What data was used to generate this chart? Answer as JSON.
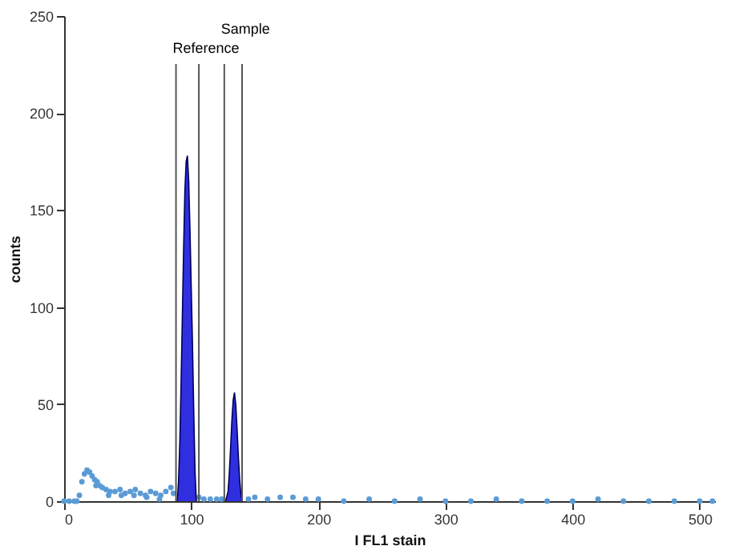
{
  "chart_data": {
    "type": "area",
    "xlabel": "I FL1 stain",
    "ylabel": "counts",
    "xlim": [
      0,
      512
    ],
    "xticks": [
      0,
      100,
      200,
      300,
      400,
      500
    ],
    "ylim": [
      0,
      250
    ],
    "yticks": [
      0,
      50,
      100,
      150,
      200,
      250
    ],
    "grid": false,
    "series": [
      {
        "type": "scatter",
        "marker": "circle",
        "color": "#5b9bd5",
        "x": [
          0,
          4,
          8,
          10,
          12,
          14,
          16,
          18,
          20,
          22,
          24,
          25,
          26,
          28,
          30,
          33,
          35,
          36,
          40,
          44,
          45,
          48,
          52,
          55,
          56,
          60,
          64,
          65,
          68,
          72,
          75,
          76,
          80,
          84,
          86,
          106,
          110,
          115,
          120,
          124,
          145,
          150,
          160,
          170,
          180,
          190,
          200,
          220,
          240,
          260,
          280,
          300,
          320,
          340,
          360,
          380,
          400,
          420,
          440,
          460,
          480,
          500,
          510
        ],
        "values": [
          0,
          0,
          0,
          0,
          3,
          10,
          14,
          16,
          15,
          13,
          11,
          8,
          10,
          8,
          7,
          6,
          3,
          5,
          5,
          6,
          3,
          4,
          5,
          3,
          6,
          4,
          3,
          2,
          5,
          4,
          1,
          3,
          5,
          7,
          4,
          2,
          1,
          1,
          1,
          1,
          1,
          2,
          1,
          2,
          2,
          1,
          1,
          0,
          1,
          0,
          1,
          0,
          0,
          1,
          0,
          0,
          0,
          1,
          0,
          0,
          0,
          0,
          0
        ]
      },
      {
        "color": "#2f2fe0",
        "x": [
          89,
          90,
          91,
          92,
          93,
          94,
          95,
          96,
          97,
          98,
          99,
          100,
          101,
          102,
          103,
          104
        ],
        "values": [
          0,
          10,
          30,
          60,
          95,
          130,
          160,
          175,
          178,
          165,
          140,
          110,
          80,
          45,
          15,
          0
        ]
      },
      {
        "color": "#2f2fe0",
        "x": [
          127,
          129,
          130,
          131,
          132,
          133,
          134,
          135,
          136,
          137,
          138,
          139,
          140
        ],
        "values": [
          0,
          5,
          15,
          28,
          42,
          52,
          56,
          50,
          38,
          24,
          12,
          4,
          0
        ]
      }
    ],
    "ref_lines": [
      {
        "axis": "x",
        "value": 88,
        "label": "Reference",
        "color": "#555555"
      },
      {
        "axis": "x",
        "value": 106,
        "label": null,
        "color": "#555555"
      },
      {
        "axis": "x",
        "value": 126,
        "label": "Sample",
        "color": "#555555"
      },
      {
        "axis": "x",
        "value": 140,
        "label": null,
        "color": "#555555"
      }
    ]
  }
}
